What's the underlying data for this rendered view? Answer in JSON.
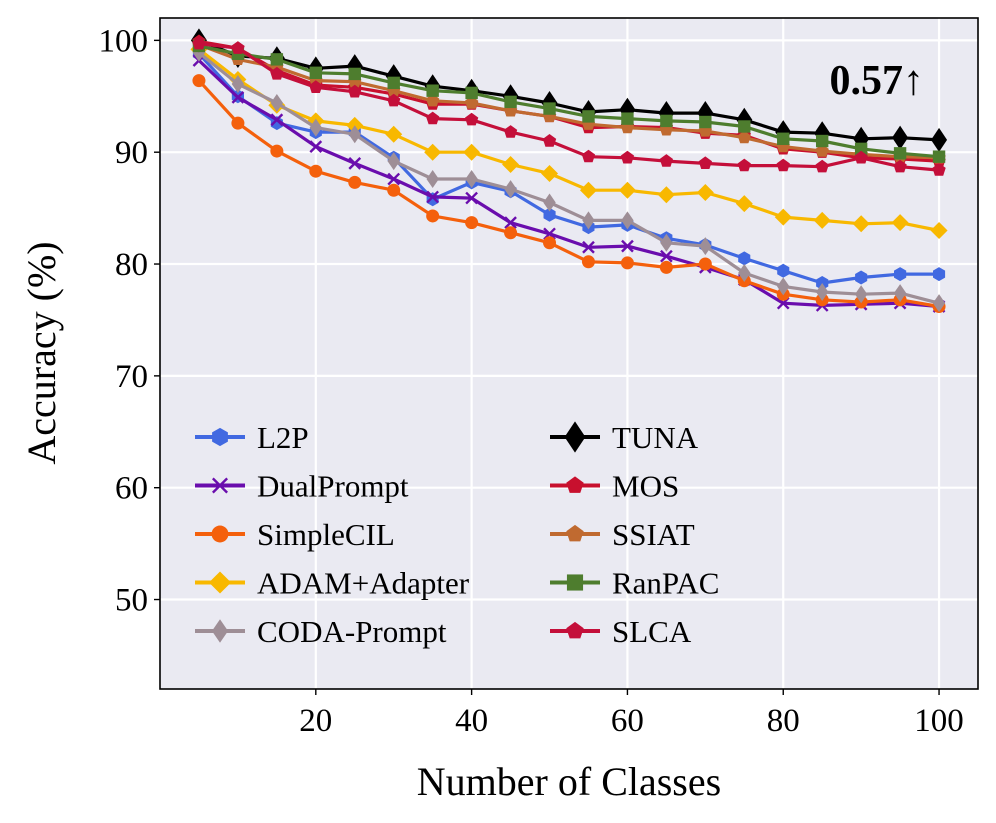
{
  "chart_data": {
    "type": "line",
    "xlabel": "Number of Classes",
    "ylabel": "Accuracy (%)",
    "xlim": [
      0,
      105
    ],
    "ylim": [
      42,
      102
    ],
    "xticks": [
      20,
      40,
      60,
      80,
      100
    ],
    "yticks": [
      50,
      60,
      70,
      80,
      90,
      100
    ],
    "grid": true,
    "legend_position": "lower-left",
    "legend_columns": 2,
    "annotation": {
      "text": "0.57↑",
      "x": 92,
      "y": 95.2
    },
    "x": [
      5,
      10,
      15,
      20,
      25,
      30,
      35,
      40,
      45,
      50,
      55,
      60,
      65,
      70,
      75,
      80,
      85,
      90,
      95,
      100
    ],
    "series": [
      {
        "name": "L2P",
        "color": "#4169E1",
        "marker": "hexagon",
        "values": [
          98.8,
          95.0,
          92.6,
          91.8,
          91.8,
          89.5,
          85.8,
          87.3,
          86.5,
          84.4,
          83.3,
          83.5,
          82.3,
          81.7,
          80.5,
          79.4,
          78.3,
          78.8,
          79.1,
          79.1
        ]
      },
      {
        "name": "DualPrompt",
        "color": "#6A0DAD",
        "marker": "x",
        "values": [
          98.2,
          94.9,
          92.9,
          90.5,
          89.0,
          87.6,
          86.0,
          85.9,
          83.7,
          82.7,
          81.5,
          81.6,
          80.7,
          79.7,
          78.6,
          76.5,
          76.3,
          76.4,
          76.5,
          76.2
        ]
      },
      {
        "name": "SimpleCIL",
        "color": "#F4600C",
        "marker": "circle",
        "values": [
          96.4,
          92.6,
          90.1,
          88.3,
          87.3,
          86.6,
          84.3,
          83.7,
          82.8,
          81.9,
          80.2,
          80.1,
          79.7,
          80.0,
          78.5,
          77.3,
          76.8,
          76.6,
          76.8,
          76.2
        ]
      },
      {
        "name": "ADAM+Adapter",
        "color": "#F8B800",
        "marker": "diamond",
        "values": [
          99.2,
          96.5,
          94.2,
          92.8,
          92.4,
          91.6,
          90.0,
          90.0,
          88.9,
          88.1,
          86.6,
          86.6,
          86.2,
          86.4,
          85.4,
          84.2,
          83.9,
          83.6,
          83.7,
          83.0
        ]
      },
      {
        "name": "CODA-Prompt",
        "color": "#9E8E96",
        "marker": "thin_diamond",
        "values": [
          98.9,
          96.1,
          94.4,
          92.2,
          91.6,
          89.2,
          87.6,
          87.6,
          86.7,
          85.5,
          83.9,
          83.9,
          81.9,
          81.6,
          79.2,
          78.0,
          77.5,
          77.3,
          77.4,
          76.5
        ]
      },
      {
        "name": "TUNA",
        "color": "#000000",
        "marker": "thin_diamond_large",
        "values": [
          100.0,
          98.6,
          98.4,
          97.5,
          97.7,
          96.8,
          95.9,
          95.5,
          95.0,
          94.4,
          93.6,
          93.8,
          93.5,
          93.5,
          92.9,
          91.8,
          91.7,
          91.2,
          91.3,
          91.1
        ]
      },
      {
        "name": "MOS",
        "color": "#C8102E",
        "marker": "pentagon",
        "values": [
          99.9,
          99.3,
          97.3,
          96.0,
          95.8,
          95.2,
          94.3,
          94.3,
          93.7,
          93.2,
          92.2,
          92.3,
          92.2,
          91.7,
          91.5,
          90.3,
          90.0,
          89.5,
          89.4,
          89.2
        ]
      },
      {
        "name": "SSIAT",
        "color": "#C06A30",
        "marker": "pentagon",
        "values": [
          99.6,
          98.3,
          97.6,
          96.4,
          96.3,
          95.5,
          94.6,
          94.4,
          93.7,
          93.2,
          92.5,
          92.2,
          92.0,
          91.9,
          91.3,
          90.5,
          90.1,
          89.8,
          89.6,
          89.5
        ]
      },
      {
        "name": "RanPAC",
        "color": "#4E7D2E",
        "marker": "square",
        "values": [
          99.5,
          98.8,
          98.3,
          97.1,
          97.0,
          96.2,
          95.5,
          95.3,
          94.5,
          93.9,
          93.2,
          93.0,
          92.8,
          92.7,
          92.3,
          91.2,
          91.0,
          90.3,
          89.9,
          89.6
        ]
      },
      {
        "name": "SLCA",
        "color": "#C40F3A",
        "marker": "pentagon",
        "values": [
          99.7,
          99.3,
          97.0,
          95.8,
          95.4,
          94.6,
          93.0,
          92.9,
          91.8,
          91.0,
          89.6,
          89.5,
          89.2,
          89.0,
          88.8,
          88.8,
          88.7,
          89.5,
          88.7,
          88.4
        ]
      }
    ]
  }
}
